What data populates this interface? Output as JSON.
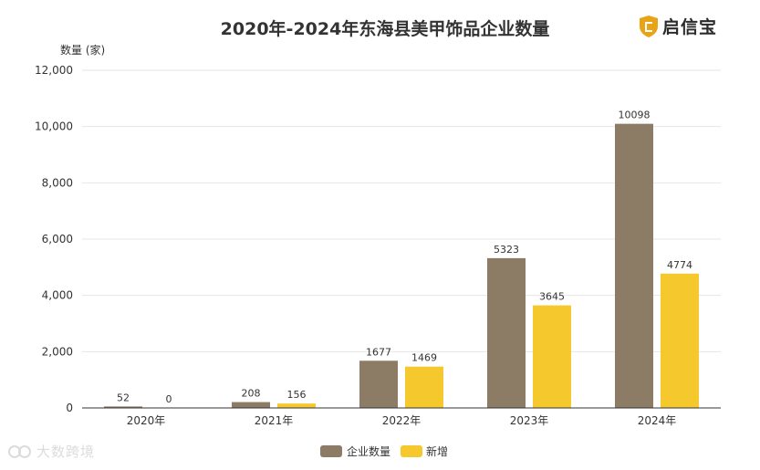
{
  "brand": {
    "name": "启信宝",
    "watermark": "大数跨境"
  },
  "colors": {
    "series1": "#8C7B65",
    "series2": "#F5C82E",
    "grid": "#e6e6e6",
    "axis": "#333333",
    "text": "#333333"
  },
  "chart_data": {
    "type": "bar",
    "title": "2020年-2024年东海县美甲饰品企业数量",
    "ylabel": "数量 (家)",
    "xlabel": "",
    "categories": [
      "2020年",
      "2021年",
      "2022年",
      "2023年",
      "2024年"
    ],
    "series": [
      {
        "name": "企业数量",
        "values": [
          52,
          208,
          1677,
          5323,
          10098
        ]
      },
      {
        "name": "新增",
        "values": [
          0,
          156,
          1469,
          3645,
          4774
        ]
      }
    ],
    "ylim": [
      0,
      12000
    ],
    "yticks": [
      0,
      2000,
      4000,
      6000,
      8000,
      10000,
      12000
    ],
    "ytick_labels": [
      "0",
      "2,000",
      "4,000",
      "6,000",
      "8,000",
      "10,000",
      "12,000"
    ],
    "grid": true,
    "legend": "bottom-center"
  }
}
